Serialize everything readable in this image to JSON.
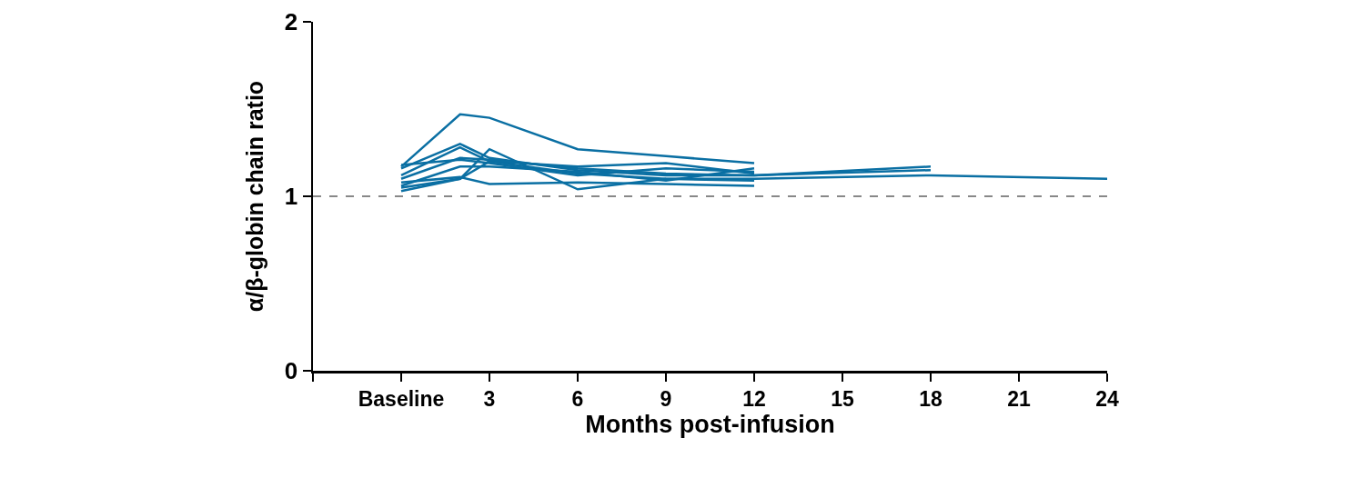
{
  "chart_data": {
    "type": "line",
    "xlabel": "Months post-infusion",
    "ylabel": "α/β-globin chain ratio",
    "xlim": [
      -3,
      24
    ],
    "xticks": [
      {
        "value": -3,
        "label": null
      },
      {
        "value": 0,
        "label": "Baseline"
      },
      3,
      6,
      9,
      12,
      15,
      18,
      21,
      24
    ],
    "ylim": [
      0,
      2
    ],
    "yticks": [
      0,
      1,
      2
    ],
    "marker": "none",
    "line_style": "solid",
    "ref_lines": [
      {
        "axis": "y",
        "value": 1,
        "color": "#888888",
        "line_style": "dashed"
      }
    ],
    "series": [
      {
        "color": "#0a6fa3",
        "x": [
          0,
          2,
          3,
          6,
          9,
          12
        ],
        "values": [
          1.17,
          1.47,
          1.45,
          1.27,
          1.23,
          1.19
        ]
      },
      {
        "color": "#0a6fa3",
        "x": [
          0,
          2,
          3,
          6,
          9,
          12,
          18
        ],
        "values": [
          1.16,
          1.3,
          1.22,
          1.15,
          1.12,
          1.12,
          1.17
        ]
      },
      {
        "color": "#0a6fa3",
        "x": [
          0,
          2,
          3,
          6,
          9,
          12,
          18,
          24
        ],
        "values": [
          1.05,
          1.1,
          1.27,
          1.04,
          1.1,
          1.1,
          1.12,
          1.1
        ]
      },
      {
        "color": "#0a6fa3",
        "x": [
          0,
          2,
          3,
          6,
          9,
          12
        ],
        "values": [
          1.08,
          1.11,
          1.07,
          1.08,
          1.07,
          1.06
        ]
      },
      {
        "color": "#0a6fa3",
        "x": [
          0,
          2,
          3,
          6,
          9,
          12
        ],
        "values": [
          1.03,
          1.1,
          1.2,
          1.17,
          1.19,
          1.13
        ]
      },
      {
        "color": "#0a6fa3",
        "x": [
          0,
          2,
          3,
          6,
          9,
          12
        ],
        "values": [
          1.12,
          1.28,
          1.2,
          1.13,
          1.1,
          1.09
        ]
      },
      {
        "color": "#0a6fa3",
        "x": [
          0,
          2,
          3,
          6,
          9,
          12,
          18
        ],
        "values": [
          1.1,
          1.22,
          1.21,
          1.16,
          1.13,
          1.12,
          1.15
        ]
      },
      {
        "color": "#0a6fa3",
        "x": [
          0,
          2,
          3,
          6,
          9,
          12
        ],
        "values": [
          1.06,
          1.17,
          1.17,
          1.14,
          1.09,
          1.16
        ]
      },
      {
        "color": "#0a6fa3",
        "x": [
          0,
          2,
          3,
          6,
          9,
          12
        ],
        "values": [
          1.18,
          1.21,
          1.19,
          1.12,
          1.16,
          1.14
        ]
      }
    ]
  }
}
